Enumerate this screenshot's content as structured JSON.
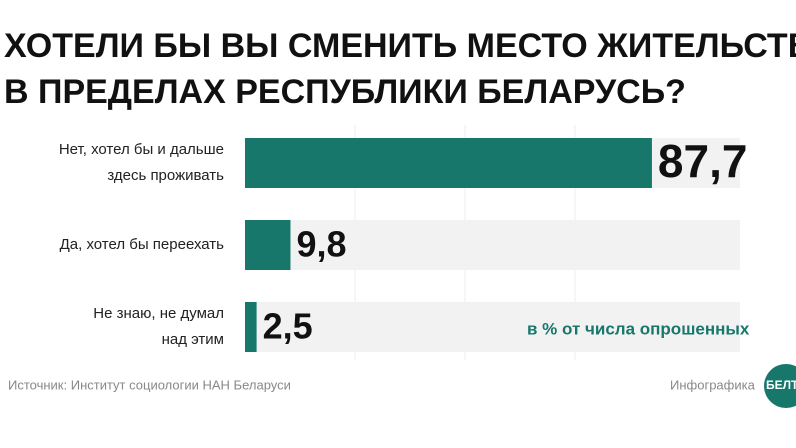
{
  "chart_data": {
    "type": "bar",
    "title": [
      "ХОТЕЛИ БЫ ВЫ СМЕНИТЬ МЕСТО ЖИТЕЛЬСТВА",
      "В ПРЕДЕЛАХ РЕСПУБЛИКИ БЕЛАРУСЬ?"
    ],
    "categories": [
      [
        "Нет, хотел бы и дальше",
        "здесь  проживать"
      ],
      [
        "Да, хотел бы переехать"
      ],
      [
        "Не знаю, не думал",
        "над этим"
      ]
    ],
    "values": [
      87.7,
      9.8,
      2.5
    ],
    "value_labels": [
      "87,7",
      "9,8",
      "2,5"
    ],
    "color": "#17776b",
    "xlim": [
      0,
      100
    ],
    "note": "в % от числа опрошенных",
    "source": "Источник: Институт социологии НАН Беларуси",
    "credit": "Инфографика",
    "logo": "БЕЛТА"
  }
}
